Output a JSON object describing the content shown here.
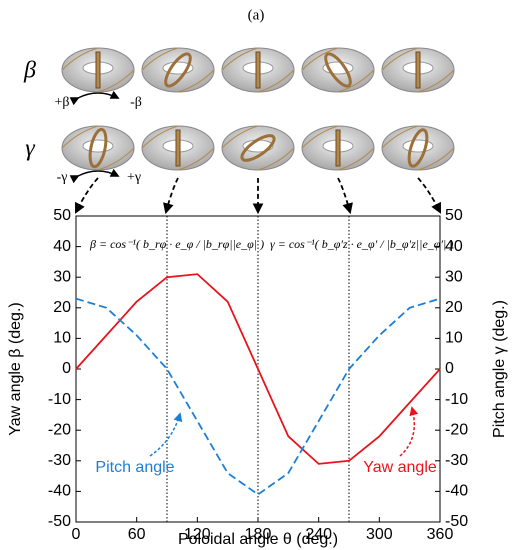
{
  "chart_data": {
    "type": "line",
    "panel_label": "(a)",
    "row_labels": [
      "β",
      "γ"
    ],
    "direction_labels": [
      "+β",
      "-β",
      "-γ",
      "+γ"
    ],
    "xlabel": "Poloidal angle θ (deg.)",
    "ylabel": "Yaw angle β (deg.)",
    "y2label": "Pitch angle γ (deg.)",
    "x": [
      0,
      30,
      60,
      90,
      120,
      150,
      180,
      210,
      240,
      270,
      300,
      330,
      360
    ],
    "series": [
      {
        "name": "Yaw angle",
        "color": "#e8141c",
        "dash": false,
        "values": [
          0,
          11,
          22,
          30,
          31,
          22,
          0,
          -22,
          -31,
          -30,
          -22,
          -11,
          0
        ]
      },
      {
        "name": "Pitch angle",
        "color": "#1c7fd6",
        "dash": true,
        "axis": "y2",
        "values": [
          23,
          20,
          11,
          0,
          -17,
          -34,
          -41,
          -34,
          -17,
          0,
          11,
          20,
          23
        ]
      }
    ],
    "xlim": [
      0,
      360
    ],
    "xticks": [
      0,
      60,
      120,
      180,
      240,
      300,
      360
    ],
    "ylim": [
      -50,
      50
    ],
    "yticks": [
      -50,
      -40,
      -30,
      -20,
      -10,
      0,
      10,
      20,
      30,
      40,
      50
    ],
    "y2lim": [
      -50,
      50
    ],
    "y2ticks": [
      -50,
      -40,
      -30,
      -20,
      -10,
      0,
      10,
      20,
      30,
      40,
      50
    ],
    "vlines": [
      90,
      180,
      270
    ],
    "annotations": [
      "β = cos⁻¹( b_rφ · e_φ / |b_rφ||e_φ| )",
      "γ = cos⁻¹( b_φ′z · e_φ′ / |b_φ′z||e_φ′| )"
    ]
  }
}
